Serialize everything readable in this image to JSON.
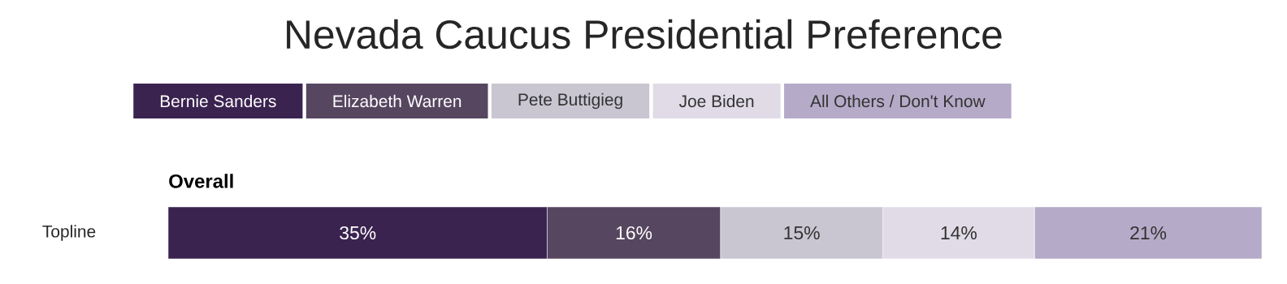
{
  "chart_data": {
    "type": "bar",
    "orientation": "horizontal",
    "stacked": true,
    "title": "Nevada Caucus Presidential Preference",
    "annotations": [
      "Overall"
    ],
    "categories": [
      "Topline"
    ],
    "legend": "top",
    "series": [
      {
        "name": "Bernie Sanders",
        "color": "#3b2350",
        "values": [
          35
        ],
        "value_labels": [
          "35%"
        ]
      },
      {
        "name": "Elizabeth Warren",
        "color": "#574660",
        "values": [
          16
        ],
        "value_labels": [
          "16%"
        ]
      },
      {
        "name": "Pete Buttigieg",
        "color": "#c9c6d2",
        "values": [
          15
        ],
        "value_labels": [
          "15%"
        ]
      },
      {
        "name": "Joe Biden",
        "color": "#e0dbe6",
        "values": [
          14
        ],
        "value_labels": [
          "14%"
        ]
      },
      {
        "name": "All Others / Don't Know",
        "color": "#b5abc8",
        "values": [
          21
        ],
        "value_labels": [
          "21%"
        ]
      }
    ]
  }
}
